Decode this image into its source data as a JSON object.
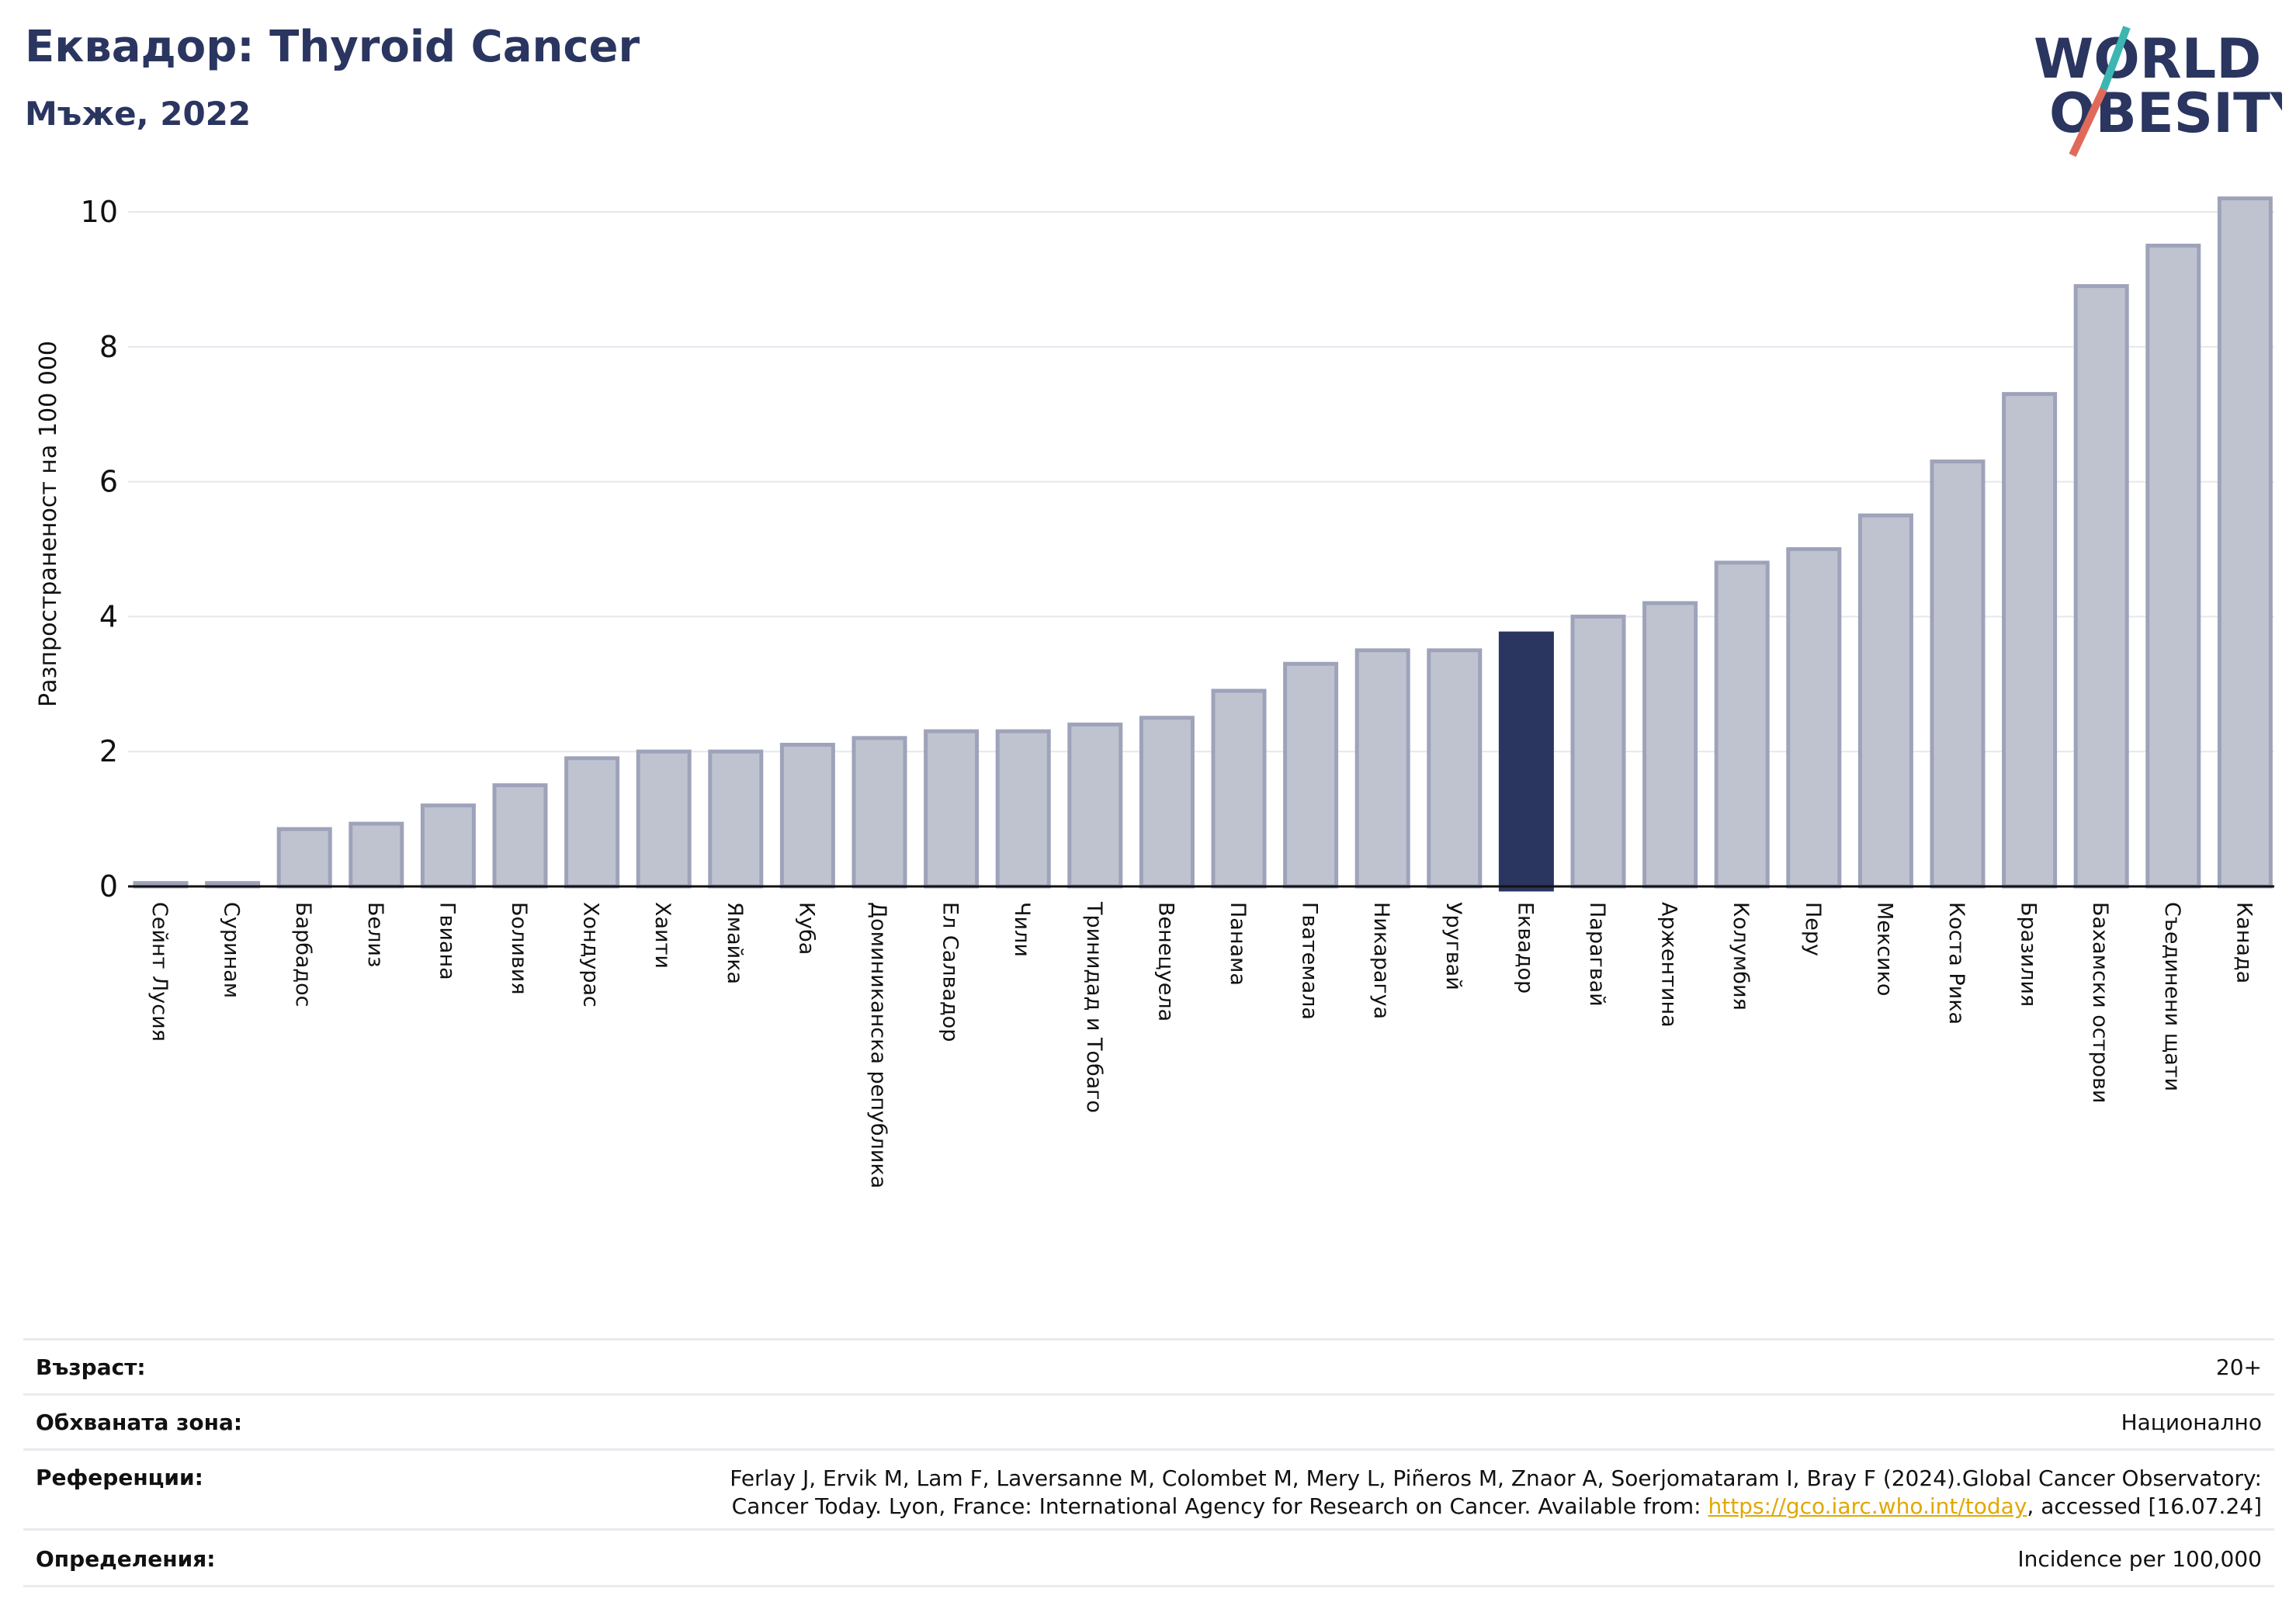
{
  "header": {
    "title": "Еквадор: Thyroid Cancer",
    "subtitle": "Мъже, 2022",
    "logo_line1": "WORLD",
    "logo_line2": "OBESITY"
  },
  "colors": {
    "bar": "#bfc3d0",
    "bar_edge": "#9ea3ba",
    "highlight": "#2a3560",
    "title": "#2a3560",
    "logo_teal": "#3cb6b0",
    "logo_red": "#e06a5a"
  },
  "chart_data": {
    "type": "bar",
    "ylabel": "Разпространеност  на 100 000",
    "ylim": [
      0,
      10.5
    ],
    "yticks": [
      0,
      2,
      4,
      6,
      8,
      10
    ],
    "grid": true,
    "highlight": "Еквадор",
    "categories": [
      "Сейнт Лусия",
      "Суринам",
      "Барбадос",
      "Белиз",
      "Гвиана",
      "Боливия",
      "Хондурас",
      "Хаити",
      "Ямайка",
      "Куба",
      "Доминиканска република",
      "Ел Салвадор",
      "Чили",
      "Тринидад и Тобаго",
      "Венецуела",
      "Панама",
      "Гватемала",
      "Никарагуа",
      "Уругвай",
      "Еквадор",
      "Парагвай",
      "Аржентина",
      "Колумбия",
      "Перу",
      "Мексико",
      "Коста Рика",
      "Бразилия",
      "Бахамски острови",
      "Съединени щати",
      "Канада"
    ],
    "values": [
      0.05,
      0.05,
      0.85,
      0.93,
      1.2,
      1.5,
      1.9,
      2.0,
      2.0,
      2.1,
      2.2,
      2.3,
      2.3,
      2.4,
      2.5,
      2.9,
      3.3,
      3.5,
      3.5,
      3.75,
      4.0,
      4.2,
      4.8,
      5.0,
      5.5,
      6.3,
      7.3,
      8.9,
      9.5,
      10.2
    ]
  },
  "info": {
    "age_label": "Възраст:",
    "age_value": "20+",
    "area_label": "Обхваната зона:",
    "area_value": "Национално",
    "ref_label": "Референции:",
    "ref_text_1": "Ferlay J, Ervik M, Lam F, Laversanne M, Colombet M, Mery L, Piñeros M, Znaor A, Soerjomataram I, Bray F (2024).Global Cancer Observatory:",
    "ref_text_2": "Cancer Today. Lyon, France: International Agency for Research on Cancer. Available from: ",
    "ref_link": "https://gco.iarc.who.int/today",
    "ref_text_3": ", accessed [16.07.24]",
    "def_label": "Определения:",
    "def_value": "Incidence per 100,000"
  }
}
